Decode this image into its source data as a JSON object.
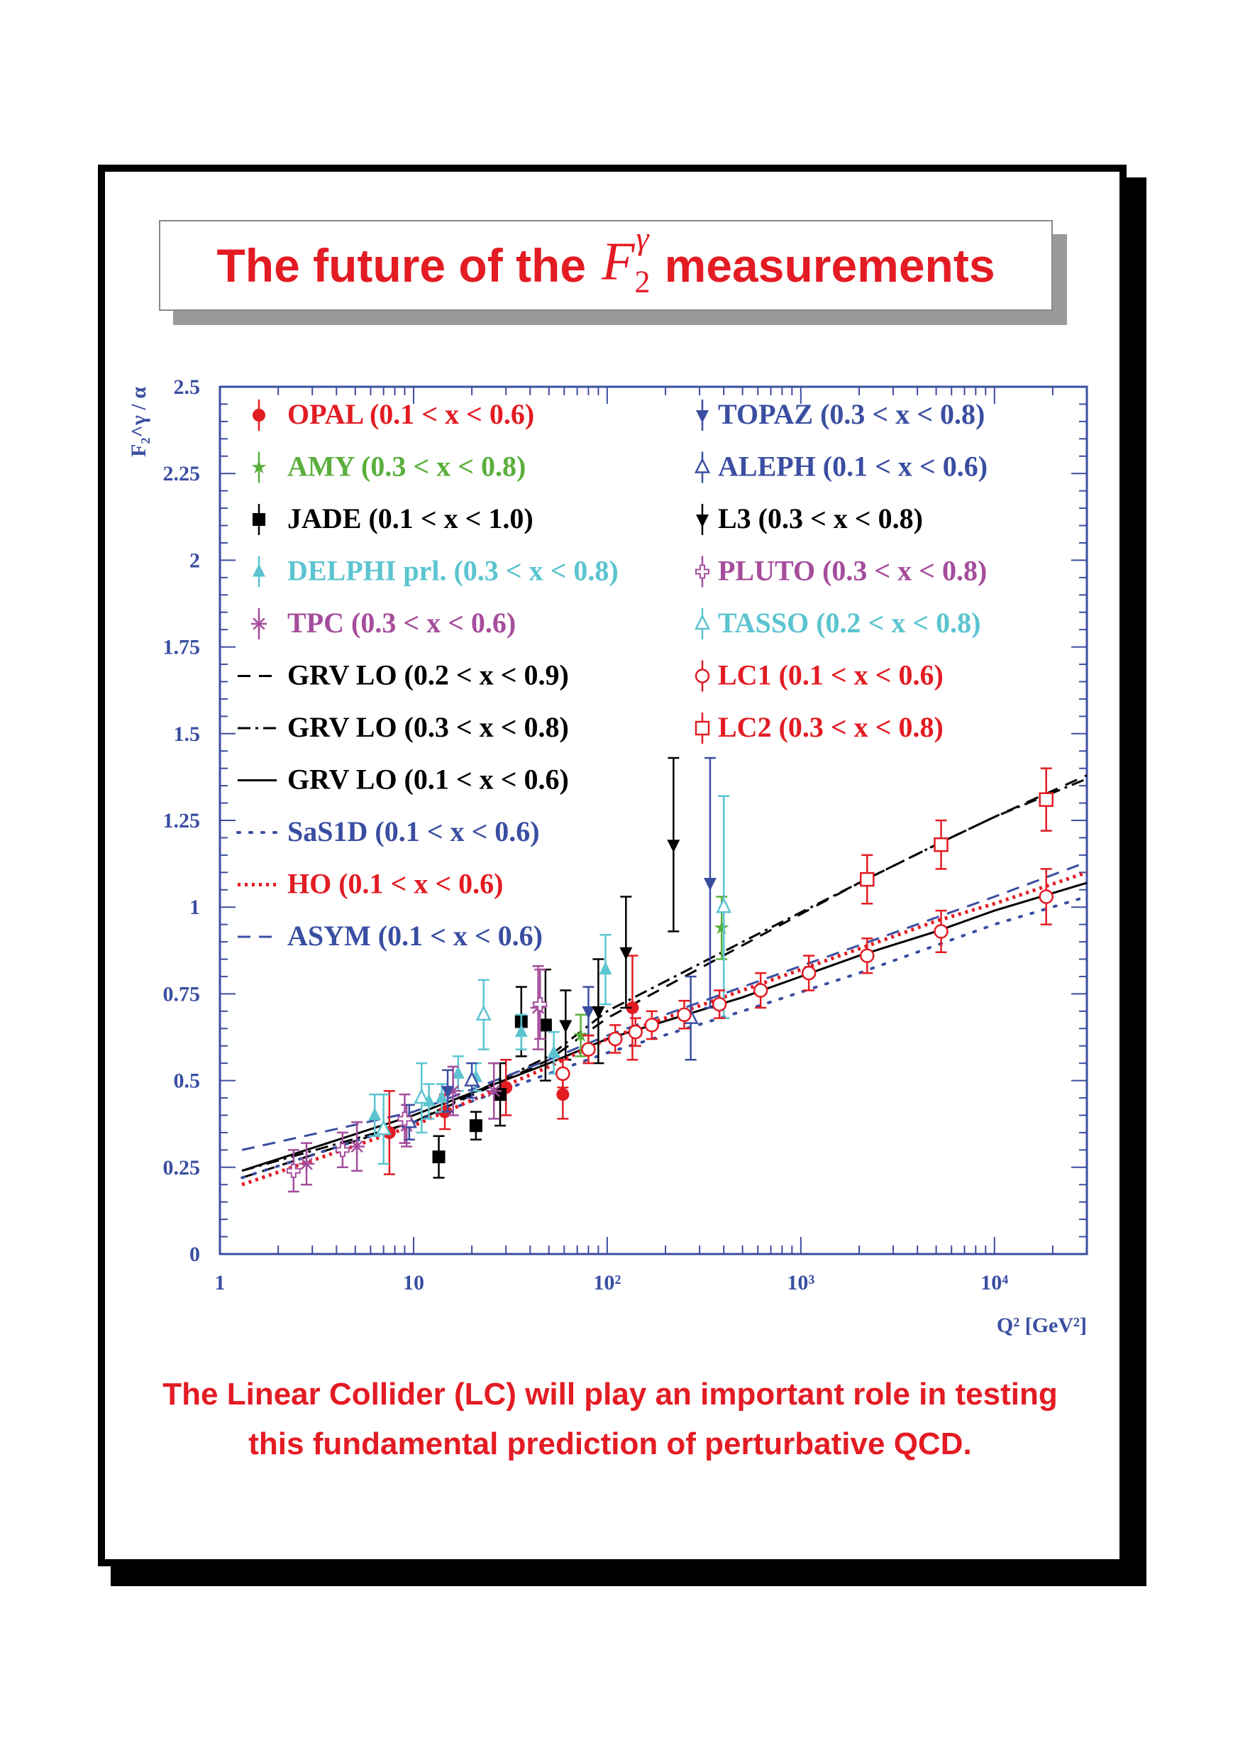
{
  "title": {
    "prefix": "The future of the",
    "math_symbol": "F",
    "math_sub": "2",
    "math_sup": "γ",
    "suffix": "measurements"
  },
  "caption": "The Linear Collider (LC) will play an important role in testing this fundamental prediction of perturbative QCD.",
  "colors": {
    "red": "#e31b23",
    "green": "#5aaf3c",
    "black": "#000000",
    "cyan": "#5bc4d0",
    "magenta": "#a54d9c",
    "blue": "#3a4ea1"
  },
  "chart_data": {
    "type": "scatter",
    "title": "",
    "xlabel": "Q² [GeV²]",
    "ylabel": "F₂^γ / α",
    "x_scale": "log",
    "xlim": [
      1,
      30000
    ],
    "ylim": [
      0,
      2.5
    ],
    "x_ticks": [
      "1",
      "10",
      "10²",
      "10³",
      "10⁴"
    ],
    "y_ticks": [
      "0",
      "0.25",
      "0.5",
      "0.75",
      "1",
      "1.25",
      "1.5",
      "1.75",
      "2",
      "2.25",
      "2.5"
    ],
    "legend_left": [
      {
        "label": "OPAL (0.1 < x < 0.6)",
        "color": "red",
        "marker": "circle-filled"
      },
      {
        "label": "AMY (0.3 < x < 0.8)",
        "color": "green",
        "marker": "star"
      },
      {
        "label": "JADE (0.1 < x < 1.0)",
        "color": "black",
        "marker": "square-filled"
      },
      {
        "label": "DELPHI prl. (0.3 < x < 0.8)",
        "color": "cyan",
        "marker": "triangle-up-filled"
      },
      {
        "label": "TPC (0.3 < x < 0.6)",
        "color": "magenta",
        "marker": "asterisk"
      },
      {
        "label": "GRV LO (0.2 < x < 0.9)",
        "color": "black",
        "marker": "line-dashed"
      },
      {
        "label": "GRV LO (0.3 < x < 0.8)",
        "color": "black",
        "marker": "line-dashdot"
      },
      {
        "label": "GRV LO (0.1 < x < 0.6)",
        "color": "black",
        "marker": "line-solid"
      },
      {
        "label": "SaS1D (0.1 < x < 0.6)",
        "color": "blue",
        "marker": "line-sparse-dot"
      },
      {
        "label": "HO (0.1 < x < 0.6)",
        "color": "red",
        "marker": "line-dotted"
      },
      {
        "label": "ASYM (0.1 < x < 0.6)",
        "color": "blue",
        "marker": "line-dashed"
      }
    ],
    "legend_right": [
      {
        "label": "TOPAZ (0.3 < x < 0.8)",
        "color": "blue",
        "marker": "triangle-down-filled"
      },
      {
        "label": "ALEPH (0.1 < x < 0.6)",
        "color": "blue",
        "marker": "triangle-up-open"
      },
      {
        "label": "L3 (0.3 < x < 0.8)",
        "color": "black",
        "marker": "triangle-down-filled"
      },
      {
        "label": "PLUTO (0.3 < x < 0.8)",
        "color": "magenta",
        "marker": "cross-open"
      },
      {
        "label": "TASSO (0.2 < x < 0.8)",
        "color": "cyan",
        "marker": "triangle-up-open"
      },
      {
        "label": "LC1 (0.1 < x < 0.6)",
        "color": "red",
        "marker": "circle-open"
      },
      {
        "label": "LC2 (0.3 < x < 0.8)",
        "color": "red",
        "marker": "square-open"
      }
    ],
    "series": [
      {
        "name": "OPAL (0.1 < x < 0.6)",
        "color": "red",
        "marker": "circle-filled",
        "points": [
          [
            7.5,
            0.35,
            0.12
          ],
          [
            14.5,
            0.41,
            0.05
          ],
          [
            30,
            0.48,
            0.08
          ],
          [
            59,
            0.46,
            0.07
          ],
          [
            135,
            0.71,
            0.15
          ]
        ]
      },
      {
        "name": "AMY (0.3 < x < 0.8)",
        "color": "green",
        "marker": "star",
        "points": [
          [
            73,
            0.63,
            0.06
          ],
          [
            390,
            0.94,
            0.09
          ]
        ]
      },
      {
        "name": "JADE (0.1 < x < 1.0)",
        "color": "black",
        "marker": "square-filled",
        "points": [
          [
            13.5,
            0.28,
            0.06
          ],
          [
            21,
            0.37,
            0.04
          ],
          [
            28,
            0.46,
            0.09
          ],
          [
            36,
            0.67,
            0.1
          ],
          [
            48,
            0.66,
            0.16
          ]
        ]
      },
      {
        "name": "DELPHI prl. (0.3 < x < 0.8)",
        "color": "cyan",
        "marker": "triangle-up-filled",
        "points": [
          [
            6.3,
            0.4,
            0.06
          ],
          [
            12,
            0.44,
            0.05
          ],
          [
            14,
            0.45,
            0.04
          ],
          [
            17,
            0.52,
            0.05
          ],
          [
            21,
            0.51,
            0.04
          ],
          [
            36,
            0.64,
            0.05
          ],
          [
            53,
            0.58,
            0.06
          ],
          [
            98,
            0.82,
            0.1
          ],
          [
            400,
            1.0,
            0.32
          ]
        ]
      },
      {
        "name": "TPC (0.3 < x < 0.6)",
        "color": "magenta",
        "marker": "asterisk",
        "points": [
          [
            2.8,
            0.26,
            0.06
          ],
          [
            5.1,
            0.31,
            0.07
          ],
          [
            9.2,
            0.37,
            0.06
          ],
          [
            16,
            0.47,
            0.07
          ],
          [
            26,
            0.47,
            0.08
          ],
          [
            44,
            0.71,
            0.12
          ]
        ]
      },
      {
        "name": "TOPAZ (0.3 < x < 0.8)",
        "color": "blue",
        "marker": "triangle-down-filled",
        "points": [
          [
            15,
            0.47,
            0.06
          ],
          [
            80,
            0.7,
            0.07
          ],
          [
            340,
            1.07,
            0.36
          ]
        ]
      },
      {
        "name": "ALEPH (0.1 < x < 0.6)",
        "color": "blue",
        "marker": "triangle-up-open",
        "points": [
          [
            9.5,
            0.38,
            0.05
          ],
          [
            20,
            0.5,
            0.05
          ],
          [
            270,
            0.68,
            0.12
          ]
        ]
      },
      {
        "name": "L3 (0.3 < x < 0.8)",
        "color": "black",
        "marker": "triangle-down-filled",
        "points": [
          [
            61,
            0.66,
            0.1
          ],
          [
            90,
            0.7,
            0.15
          ],
          [
            125,
            0.87,
            0.16
          ],
          [
            220,
            1.18,
            0.25
          ]
        ]
      },
      {
        "name": "PLUTO (0.3 < x < 0.8)",
        "color": "magenta",
        "marker": "cross-open",
        "points": [
          [
            2.4,
            0.24,
            0.06
          ],
          [
            4.3,
            0.3,
            0.05
          ],
          [
            9,
            0.39,
            0.07
          ],
          [
            45,
            0.72,
            0.1
          ]
        ]
      },
      {
        "name": "TASSO (0.2 < x < 0.8)",
        "color": "cyan",
        "marker": "triangle-up-open",
        "points": [
          [
            7,
            0.36,
            0.1
          ],
          [
            11,
            0.45,
            0.1
          ],
          [
            23,
            0.69,
            0.1
          ],
          [
            400,
            1.0,
            0.32
          ]
        ]
      },
      {
        "name": "LC1 (0.1 < x < 0.6)",
        "color": "red",
        "marker": "circle-open",
        "points": [
          [
            59,
            0.52,
            0.04
          ],
          [
            80,
            0.59,
            0.04
          ],
          [
            110,
            0.62,
            0.04
          ],
          [
            140,
            0.64,
            0.04
          ],
          [
            170,
            0.66,
            0.04
          ],
          [
            250,
            0.69,
            0.04
          ],
          [
            380,
            0.72,
            0.04
          ],
          [
            620,
            0.76,
            0.05
          ],
          [
            1100,
            0.81,
            0.05
          ],
          [
            2200,
            0.86,
            0.05
          ],
          [
            5300,
            0.93,
            0.06
          ],
          [
            18500,
            1.03,
            0.08
          ]
        ]
      },
      {
        "name": "LC2 (0.3 < x < 0.8)",
        "color": "red",
        "marker": "square-open",
        "points": [
          [
            2200,
            1.08,
            0.07
          ],
          [
            5300,
            1.18,
            0.07
          ],
          [
            18500,
            1.31,
            0.09
          ]
        ]
      }
    ],
    "curves": [
      {
        "name": "GRV LO (0.2 < x < 0.9)",
        "color": "black",
        "style": "dashed",
        "points": [
          [
            1.3,
            0.22
          ],
          [
            10,
            0.38
          ],
          [
            50,
            0.56
          ],
          [
            100,
            0.68
          ],
          [
            500,
            0.89
          ],
          [
            2000,
            1.07
          ],
          [
            5000,
            1.18
          ],
          [
            10000,
            1.26
          ],
          [
            30000,
            1.38
          ]
        ]
      },
      {
        "name": "GRV LO (0.3 < x < 0.8)",
        "color": "black",
        "style": "dashdot",
        "points": [
          [
            1.3,
            0.24
          ],
          [
            10,
            0.38
          ],
          [
            50,
            0.57
          ],
          [
            100,
            0.7
          ],
          [
            500,
            0.9
          ],
          [
            2000,
            1.07
          ],
          [
            5000,
            1.18
          ],
          [
            10000,
            1.26
          ],
          [
            30000,
            1.37
          ]
        ]
      },
      {
        "name": "GRV LO (0.1 < x < 0.6)",
        "color": "black",
        "style": "solid",
        "points": [
          [
            1.3,
            0.24
          ],
          [
            10,
            0.4
          ],
          [
            50,
            0.55
          ],
          [
            100,
            0.62
          ],
          [
            500,
            0.74
          ],
          [
            2000,
            0.86
          ],
          [
            5000,
            0.93
          ],
          [
            10000,
            0.99
          ],
          [
            30000,
            1.07
          ]
        ]
      },
      {
        "name": "SaS1D (0.1 < x < 0.6)",
        "color": "blue",
        "style": "sparse-dot",
        "points": [
          [
            1.3,
            0.22
          ],
          [
            10,
            0.38
          ],
          [
            50,
            0.52
          ],
          [
            100,
            0.58
          ],
          [
            500,
            0.7
          ],
          [
            2000,
            0.81
          ],
          [
            5000,
            0.89
          ],
          [
            10000,
            0.95
          ],
          [
            30000,
            1.03
          ]
        ]
      },
      {
        "name": "HO (0.1 < x < 0.6)",
        "color": "red",
        "style": "dotted",
        "points": [
          [
            1.3,
            0.2
          ],
          [
            10,
            0.37
          ],
          [
            50,
            0.54
          ],
          [
            100,
            0.62
          ],
          [
            500,
            0.76
          ],
          [
            2000,
            0.88
          ],
          [
            5000,
            0.96
          ],
          [
            10000,
            1.01
          ],
          [
            30000,
            1.1
          ]
        ]
      },
      {
        "name": "ASYM (0.1 < x < 0.6)",
        "color": "blue",
        "style": "dashed",
        "points": [
          [
            1.3,
            0.3
          ],
          [
            10,
            0.41
          ],
          [
            50,
            0.56
          ],
          [
            100,
            0.63
          ],
          [
            500,
            0.77
          ],
          [
            2000,
            0.89
          ],
          [
            5000,
            0.97
          ],
          [
            10000,
            1.03
          ],
          [
            30000,
            1.13
          ]
        ]
      }
    ]
  }
}
